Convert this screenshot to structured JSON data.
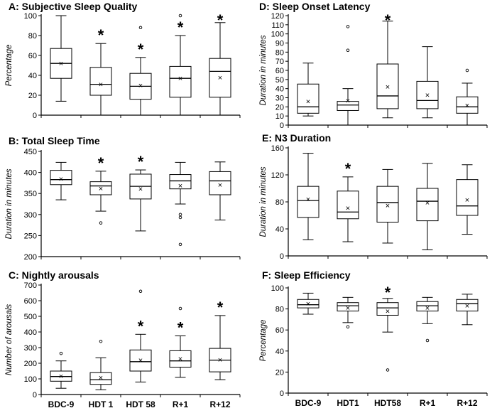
{
  "chart_data": [
    {
      "id": "A",
      "type": "box",
      "title": "A: Subjective Sleep Quality",
      "ylabel": "Percentage",
      "ylim": [
        0,
        100
      ],
      "yticks": [
        0,
        20,
        40,
        60,
        80,
        100
      ],
      "categories": [
        "BDC-9",
        "HDT 1",
        "HDT 58",
        "R+1",
        "R+12"
      ],
      "show_category_labels": false,
      "boxes": [
        {
          "min": 14,
          "q1": 37,
          "median": 52,
          "q3": 67,
          "max": 100,
          "mean": 52,
          "outliers": [],
          "significant": false
        },
        {
          "min": 0,
          "q1": 20,
          "median": 31,
          "q3": 48,
          "max": 72,
          "mean": 31,
          "outliers": [],
          "significant": true
        },
        {
          "min": 0,
          "q1": 16,
          "median": 29,
          "q3": 42,
          "max": 58,
          "mean": 30,
          "outliers": [
            88
          ],
          "significant": true
        },
        {
          "min": 0,
          "q1": 18,
          "median": 37,
          "q3": 49,
          "max": 80,
          "mean": 37,
          "outliers": [
            100
          ],
          "significant": true
        },
        {
          "min": 0,
          "q1": 18,
          "median": 44,
          "q3": 57,
          "max": 93,
          "mean": 38,
          "outliers": [],
          "significant": true
        }
      ]
    },
    {
      "id": "B",
      "type": "box",
      "title": "B: Total Sleep Time",
      "ylabel": "Duration in minutes",
      "ylim": [
        200,
        450
      ],
      "yticks": [
        200,
        250,
        300,
        350,
        400,
        450
      ],
      "categories": [
        "BDC-9",
        "HDT 1",
        "HDT 58",
        "R+1",
        "R+12"
      ],
      "show_category_labels": false,
      "boxes": [
        {
          "min": 335,
          "q1": 371,
          "median": 383,
          "q3": 405,
          "max": 424,
          "mean": 385,
          "outliers": [],
          "significant": false
        },
        {
          "min": 308,
          "q1": 347,
          "median": 368,
          "q3": 378,
          "max": 403,
          "mean": 362,
          "outliers": [
            280
          ],
          "significant": true
        },
        {
          "min": 261,
          "q1": 337,
          "median": 367,
          "q3": 396,
          "max": 406,
          "mean": 361,
          "outliers": [],
          "significant": true
        },
        {
          "min": 325,
          "q1": 361,
          "median": 380,
          "q3": 395,
          "max": 424,
          "mean": 369,
          "outliers": [
            300,
            293,
            229
          ],
          "significant": false
        },
        {
          "min": 287,
          "q1": 347,
          "median": 380,
          "q3": 402,
          "max": 425,
          "mean": 371,
          "outliers": [],
          "significant": false
        }
      ]
    },
    {
      "id": "C",
      "type": "box",
      "title": "C: Nightly arousals",
      "ylabel": "Number of arousals",
      "ylim": [
        0,
        700
      ],
      "yticks": [
        0,
        100,
        200,
        300,
        400,
        500,
        600,
        700
      ],
      "categories": [
        "BDC-9",
        "HDT 1",
        "HDT 58",
        "R+1",
        "R+12"
      ],
      "show_category_labels": true,
      "boxes": [
        {
          "min": 40,
          "q1": 85,
          "median": 115,
          "q3": 150,
          "max": 215,
          "mean": 118,
          "outliers": [
            263
          ],
          "significant": false
        },
        {
          "min": 30,
          "q1": 65,
          "median": 95,
          "q3": 140,
          "max": 235,
          "mean": 110,
          "outliers": [
            340
          ],
          "significant": false
        },
        {
          "min": 80,
          "q1": 150,
          "median": 210,
          "q3": 285,
          "max": 385,
          "mean": 220,
          "outliers": [
            660
          ],
          "significant": true
        },
        {
          "min": 110,
          "q1": 175,
          "median": 215,
          "q3": 280,
          "max": 375,
          "mean": 230,
          "outliers": [
            550
          ],
          "significant": true
        },
        {
          "min": 95,
          "q1": 145,
          "median": 220,
          "q3": 295,
          "max": 505,
          "mean": 222,
          "outliers": [],
          "significant": true
        }
      ]
    },
    {
      "id": "D",
      "type": "box",
      "title": "D: Sleep Onset Latency",
      "ylabel": "Duration in minutes",
      "ylim": [
        0,
        120
      ],
      "yticks": [
        0,
        10,
        20,
        30,
        40,
        50,
        60,
        70,
        80,
        90,
        100,
        110,
        120
      ],
      "categories": [
        "BDC-9",
        "HDT1",
        "HDT58",
        "R+1",
        "R+12"
      ],
      "show_category_labels": false,
      "boxes": [
        {
          "min": 10,
          "q1": 13,
          "median": 20,
          "q3": 45,
          "max": 68,
          "mean": 26,
          "outliers": [],
          "significant": false
        },
        {
          "min": 0,
          "q1": 16,
          "median": 22,
          "q3": 26,
          "max": 40,
          "mean": 27,
          "outliers": [
            108,
            82
          ],
          "significant": false
        },
        {
          "min": 8,
          "q1": 18,
          "median": 32,
          "q3": 67,
          "max": 114,
          "mean": 42,
          "outliers": [],
          "significant": true
        },
        {
          "min": 8,
          "q1": 18,
          "median": 27,
          "q3": 48,
          "max": 86,
          "mean": 33,
          "outliers": [],
          "significant": false
        },
        {
          "min": 0,
          "q1": 13,
          "median": 20,
          "q3": 31,
          "max": 46,
          "mean": 22,
          "outliers": [
            60
          ],
          "significant": false
        }
      ]
    },
    {
      "id": "E",
      "type": "box",
      "title": "E: N3 Duration",
      "ylabel": "Duration in minutes",
      "ylim": [
        0,
        160
      ],
      "yticks": [
        0,
        40,
        80,
        120,
        160
      ],
      "categories": [
        "BDC-9",
        "HDT1",
        "HDT58",
        "R+1",
        "R+12"
      ],
      "show_category_labels": false,
      "boxes": [
        {
          "min": 24,
          "q1": 57,
          "median": 82,
          "q3": 103,
          "max": 152,
          "mean": 84,
          "outliers": [],
          "significant": false
        },
        {
          "min": 21,
          "q1": 55,
          "median": 65,
          "q3": 96,
          "max": 117,
          "mean": 71,
          "outliers": [],
          "significant": true
        },
        {
          "min": 19,
          "q1": 50,
          "median": 79,
          "q3": 103,
          "max": 128,
          "mean": 75,
          "outliers": [],
          "significant": false
        },
        {
          "min": 9,
          "q1": 52,
          "median": 81,
          "q3": 100,
          "max": 137,
          "mean": 79,
          "outliers": [],
          "significant": false
        },
        {
          "min": 32,
          "q1": 60,
          "median": 74,
          "q3": 113,
          "max": 135,
          "mean": 83,
          "outliers": [],
          "significant": false
        }
      ]
    },
    {
      "id": "F",
      "type": "box",
      "title": "F: Sleep Efficiency",
      "ylabel": "Percentage",
      "ylim": [
        0,
        100
      ],
      "yticks": [
        0,
        20,
        40,
        60,
        80,
        100
      ],
      "categories": [
        "BDC-9",
        "HDT1",
        "HDT58",
        "R+1",
        "R+12"
      ],
      "show_category_labels": true,
      "boxes": [
        {
          "min": 75,
          "q1": 81,
          "median": 84,
          "q3": 89,
          "max": 95,
          "mean": 85,
          "outliers": [],
          "significant": false
        },
        {
          "min": 67,
          "q1": 78,
          "median": 83,
          "q3": 86,
          "max": 91,
          "mean": 81,
          "outliers": [
            63
          ],
          "significant": false
        },
        {
          "min": 58,
          "q1": 74,
          "median": 81,
          "q3": 86,
          "max": 90,
          "mean": 78,
          "outliers": [
            22
          ],
          "significant": true
        },
        {
          "min": 66,
          "q1": 78,
          "median": 83,
          "q3": 87,
          "max": 91,
          "mean": 81,
          "outliers": [
            50
          ],
          "significant": false
        },
        {
          "min": 65,
          "q1": 78,
          "median": 85,
          "q3": 89,
          "max": 94,
          "mean": 83,
          "outliers": [],
          "significant": false
        }
      ]
    }
  ],
  "markers": {
    "significance": "*",
    "mean": "×"
  }
}
